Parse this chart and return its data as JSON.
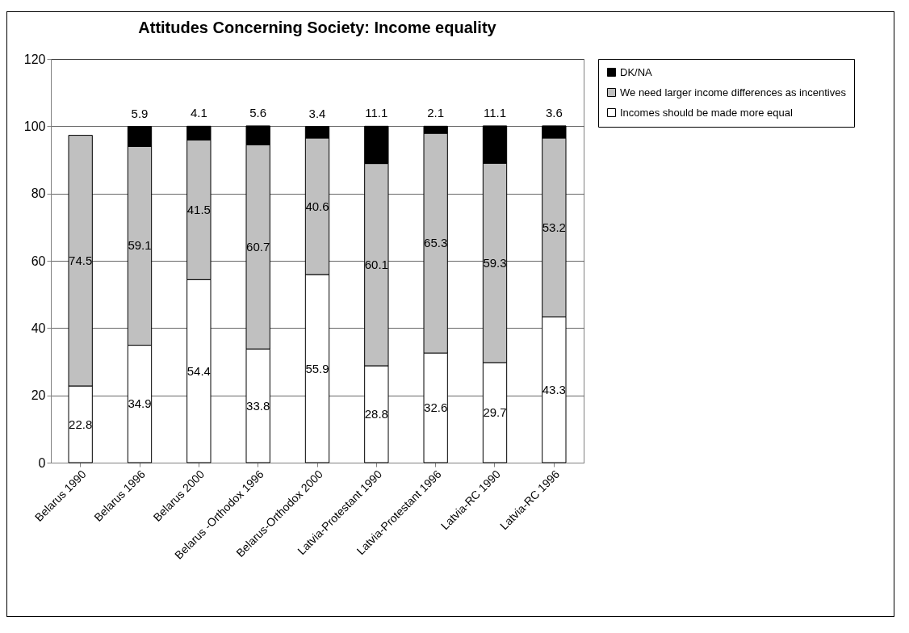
{
  "chart_data": {
    "type": "bar",
    "title": "Attitudes Concerning Society: Income equality",
    "categories": [
      "Belarus 1990",
      "Belarus 1996",
      "Belarus 2000",
      "Belarus -Orthodox 1996",
      "Belarus-Orthodox 2000",
      "Latvia-Protestant 1990",
      "Latvia-Protestant 1996",
      "Latvia-RC 1990",
      "Latvia-RC 1996"
    ],
    "series": [
      {
        "name": "Incomes should be made more equal",
        "color": "#ffffff",
        "values": [
          22.8,
          34.9,
          54.4,
          33.8,
          55.9,
          28.8,
          32.6,
          29.7,
          43.3
        ]
      },
      {
        "name": "We need larger income differences as incentives",
        "color": "#c0c0c0",
        "values": [
          74.5,
          59.1,
          41.5,
          60.7,
          40.6,
          60.1,
          65.3,
          59.3,
          53.2
        ]
      },
      {
        "name": "DK/NA",
        "color": "#000000",
        "values": [
          null,
          5.9,
          4.1,
          5.6,
          3.4,
          11.1,
          2.1,
          11.1,
          3.6
        ]
      }
    ],
    "stacked": true,
    "ylim": [
      0,
      120
    ],
    "yticks": [
      0,
      20,
      40,
      60,
      80,
      100,
      120
    ],
    "grid": "y",
    "legend": "right",
    "data_labels": true
  }
}
